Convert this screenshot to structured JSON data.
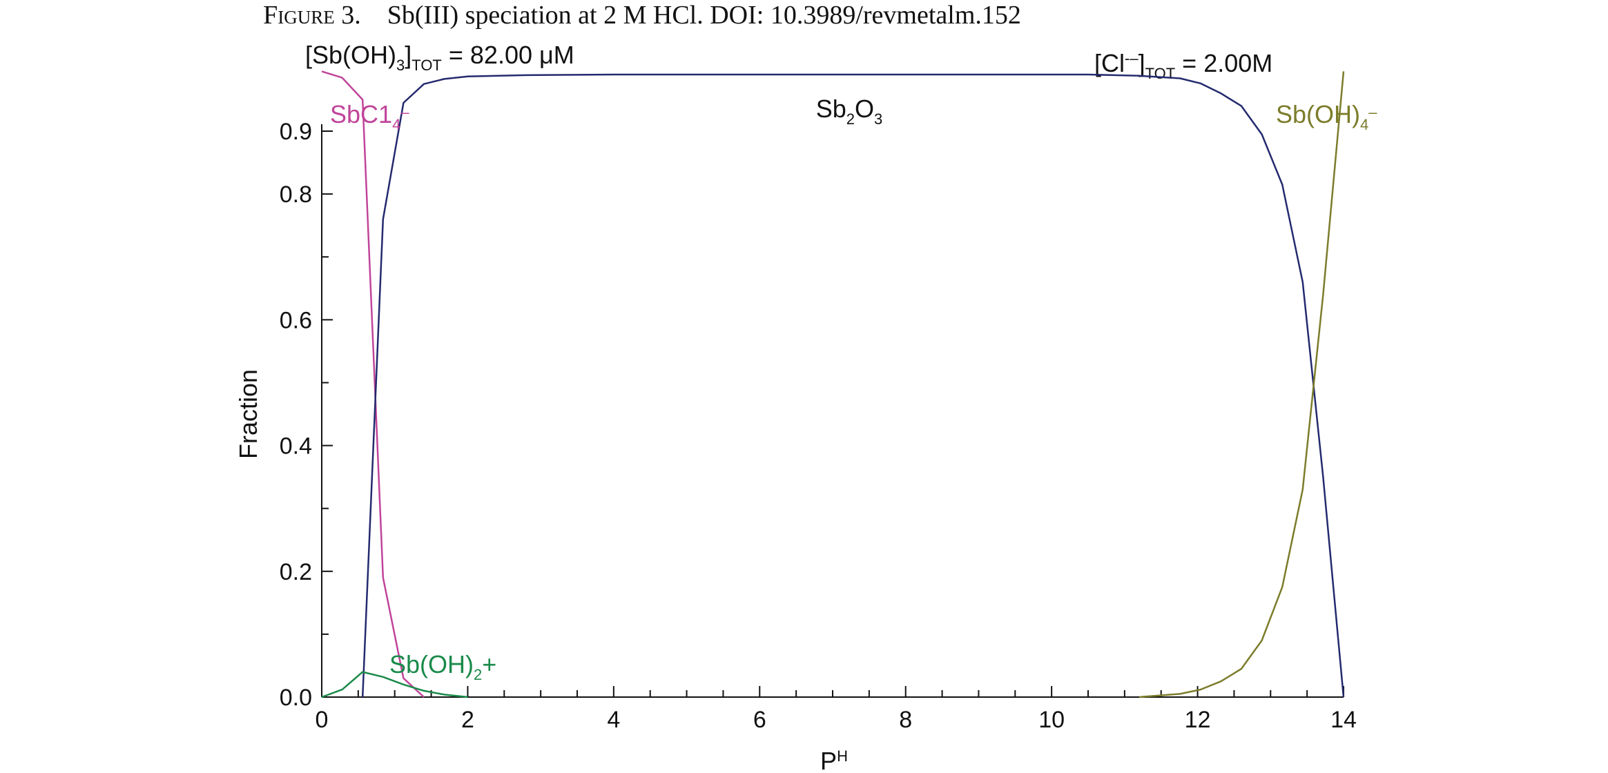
{
  "figure": {
    "label": "Figure 3.",
    "caption": "Sb(III) speciation at 2 M HCl. DOI: 10.3989/revmetalm.152"
  },
  "annotations": {
    "sb_total": {
      "main": "[Sb(OH)",
      "sub1": "3",
      "close": "]",
      "sub2": "TOT",
      "rest": " = 82.00 μM"
    },
    "cl_total": {
      "main": "[Cl",
      "sup": "-–",
      "close": "]",
      "sub": "TOT",
      "rest": " = 2.00M"
    }
  },
  "chart_data": {
    "type": "line",
    "xlabel": "PH",
    "ylabel": "Fraction",
    "xlim": [
      0,
      14
    ],
    "ylim": [
      0,
      0.9
    ],
    "xticks": [
      "0",
      "2",
      "4",
      "6",
      "8",
      "10",
      "12",
      "14"
    ],
    "yticks": [
      "0.0",
      "0.2",
      "0.4",
      "0.6",
      "0.8",
      "0.9"
    ],
    "series": [
      {
        "name": "SbC14–",
        "label_parts": {
          "main": "SbC1",
          "sub": "4",
          "sup": "–"
        },
        "color": "#c0449a",
        "points": [
          [
            0,
            0.995
          ],
          [
            0.28,
            0.985
          ],
          [
            0.56,
            0.95
          ],
          [
            0.84,
            0.19
          ],
          [
            1.12,
            0.03
          ],
          [
            1.4,
            0.0
          ]
        ]
      },
      {
        "name": "Sb2O3",
        "label_parts": {
          "main": "Sb",
          "sub": "2",
          "main2": "O",
          "sub2": "3"
        },
        "color": "#232a6e",
        "points": [
          [
            0.56,
            0.0
          ],
          [
            0.84,
            0.76
          ],
          [
            1.12,
            0.945
          ],
          [
            1.4,
            0.975
          ],
          [
            1.68,
            0.983
          ],
          [
            2.0,
            0.987
          ],
          [
            2.8,
            0.989
          ],
          [
            4,
            0.99
          ],
          [
            6,
            0.99
          ],
          [
            8,
            0.99
          ],
          [
            10.5,
            0.99
          ],
          [
            11.2,
            0.988
          ],
          [
            11.76,
            0.984
          ],
          [
            12.04,
            0.976
          ],
          [
            12.32,
            0.96
          ],
          [
            12.6,
            0.94
          ],
          [
            12.88,
            0.895
          ],
          [
            13.16,
            0.815
          ],
          [
            13.44,
            0.66
          ],
          [
            13.72,
            0.35
          ],
          [
            14.0,
            0.0
          ]
        ]
      },
      {
        "name": "Sb(OH)4–",
        "label_parts": {
          "main": "Sb(OH)",
          "sub": "4",
          "sup": "–"
        },
        "color": "#7b7c2a",
        "points": [
          [
            11.2,
            0.0
          ],
          [
            11.76,
            0.005
          ],
          [
            12.04,
            0.012
          ],
          [
            12.32,
            0.025
          ],
          [
            12.6,
            0.045
          ],
          [
            12.88,
            0.09
          ],
          [
            13.16,
            0.175
          ],
          [
            13.44,
            0.33
          ],
          [
            13.72,
            0.64
          ],
          [
            14.0,
            0.995
          ]
        ]
      },
      {
        "name": "Sb(OH)2+",
        "label_parts": {
          "main": "Sb(OH)",
          "sub": "2",
          "tail": "+"
        },
        "color": "#1a8a4a",
        "points": [
          [
            0,
            0.0
          ],
          [
            0.28,
            0.012
          ],
          [
            0.56,
            0.04
          ],
          [
            0.84,
            0.032
          ],
          [
            1.12,
            0.02
          ],
          [
            1.4,
            0.01
          ],
          [
            1.68,
            0.004
          ],
          [
            2.0,
            0.0
          ]
        ]
      }
    ]
  }
}
